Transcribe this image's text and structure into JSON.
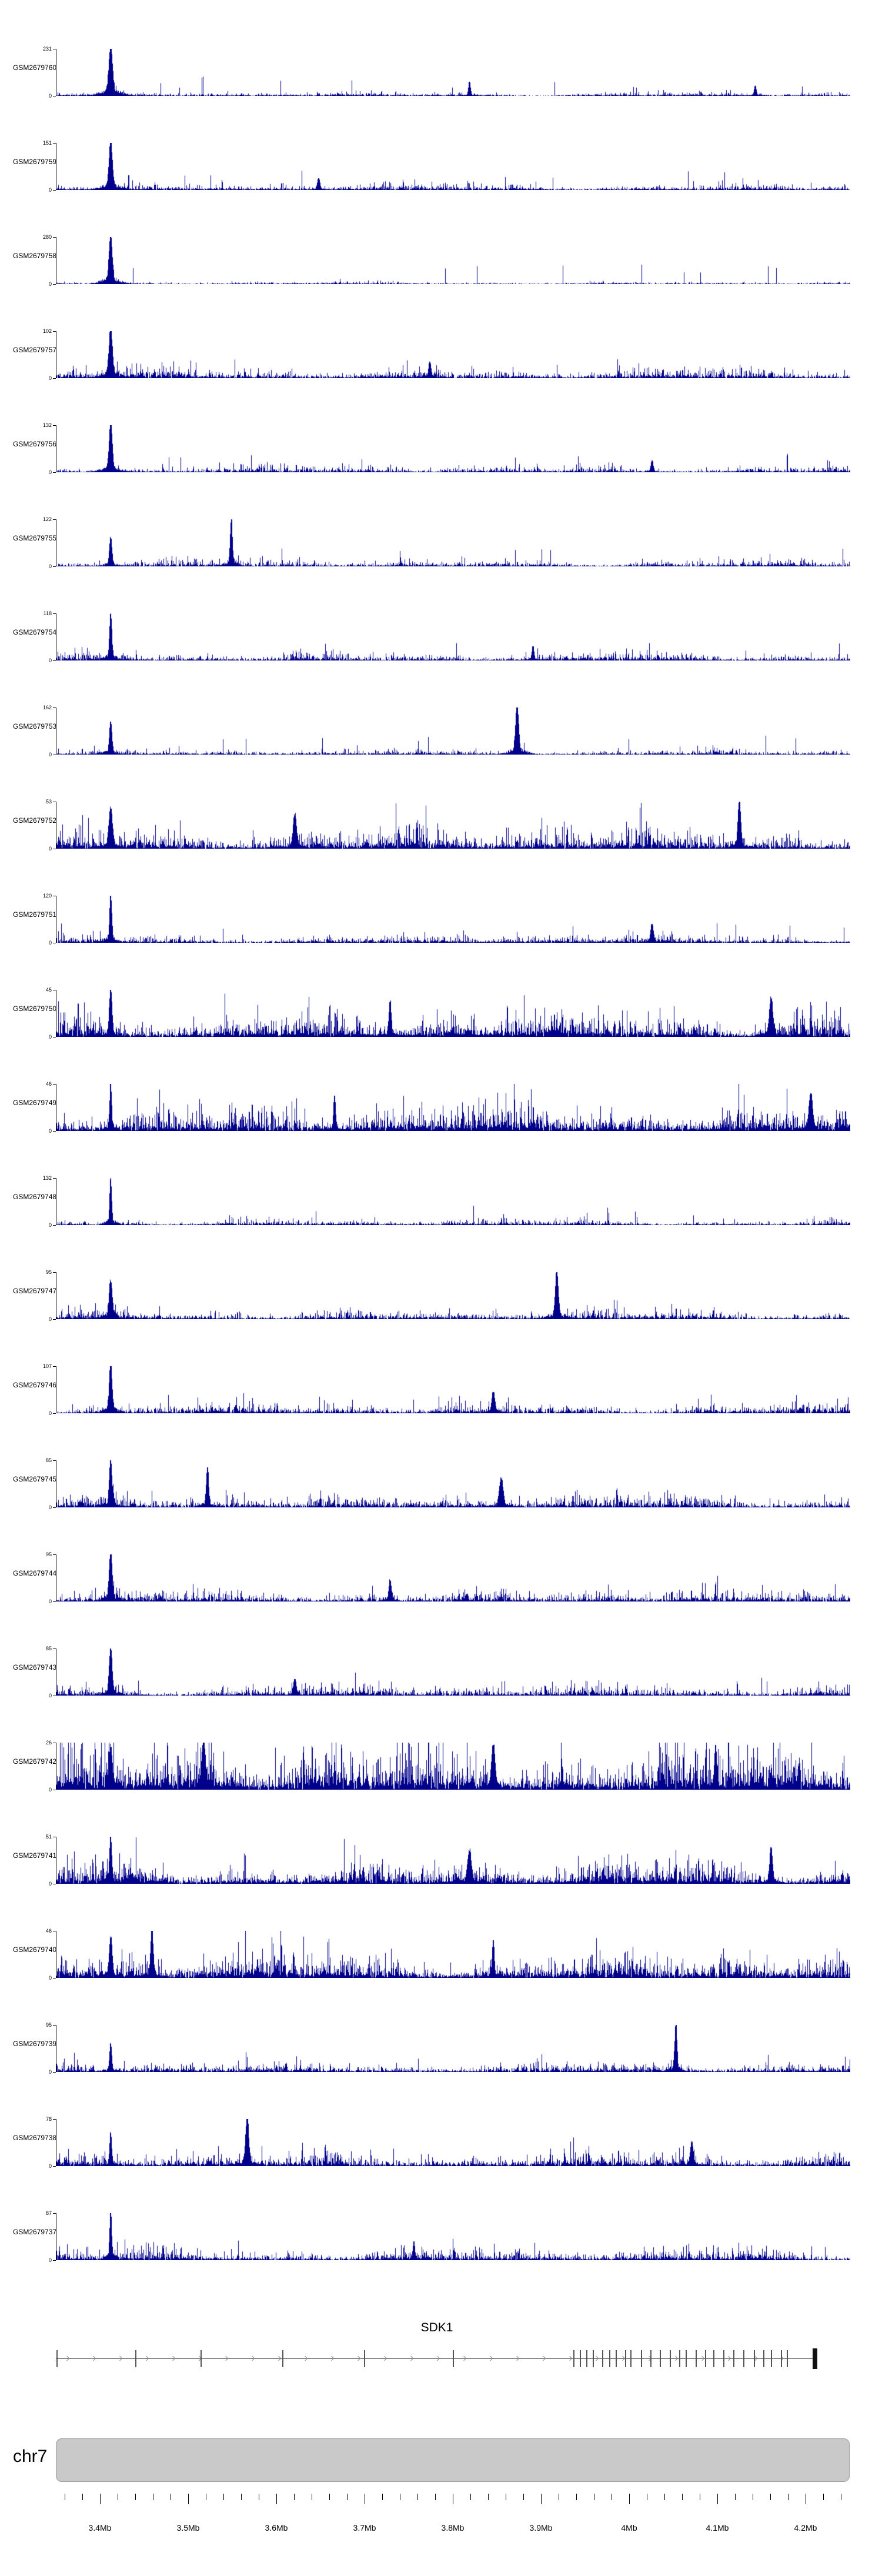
{
  "chart_data": {
    "type": "genome-coverage-tracks",
    "region": {
      "chromosome": "chr7",
      "start_mb": 3.35,
      "end_mb": 4.25,
      "unit": "Mb"
    },
    "signal_color": "#00008B",
    "y_min_label": "0",
    "x_axis": {
      "tick_labels": [
        "3.4Mb",
        "3.5Mb",
        "3.6Mb",
        "3.7Mb",
        "3.8Mb",
        "3.9Mb",
        "4Mb",
        "4.1Mb",
        "4.2Mb"
      ],
      "tick_values_mb": [
        3.4,
        3.5,
        3.6,
        3.7,
        3.8,
        3.9,
        4.0,
        4.1,
        4.2
      ],
      "minor_tick_step_mb": 0.02,
      "minor_tick_start_mb": 3.36,
      "minor_tick_end_mb": 4.24
    },
    "tracks": [
      {
        "name": "GSM2679760",
        "ymax": 231,
        "noise": 6,
        "peaks": [
          [
            0.068,
            1.0
          ],
          [
            0.52,
            0.3
          ],
          [
            0.88,
            0.22
          ]
        ]
      },
      {
        "name": "GSM2679759",
        "ymax": 151,
        "noise": 7,
        "peaks": [
          [
            0.068,
            1.0
          ],
          [
            0.33,
            0.25
          ]
        ]
      },
      {
        "name": "GSM2679758",
        "ymax": 280,
        "noise": 5,
        "peaks": [
          [
            0.068,
            1.0
          ]
        ]
      },
      {
        "name": "GSM2679757",
        "ymax": 102,
        "noise": 8,
        "peaks": [
          [
            0.068,
            1.0
          ],
          [
            0.47,
            0.35
          ]
        ]
      },
      {
        "name": "GSM2679756",
        "ymax": 132,
        "noise": 7,
        "peaks": [
          [
            0.068,
            1.0
          ],
          [
            0.75,
            0.25
          ]
        ]
      },
      {
        "name": "GSM2679755",
        "ymax": 122,
        "noise": 6,
        "peaks": [
          [
            0.22,
            1.0
          ],
          [
            0.068,
            0.6
          ]
        ]
      },
      {
        "name": "GSM2679754",
        "ymax": 118,
        "noise": 7,
        "peaks": [
          [
            0.068,
            1.0
          ],
          [
            0.6,
            0.3
          ]
        ]
      },
      {
        "name": "GSM2679753",
        "ymax": 162,
        "noise": 6,
        "peaks": [
          [
            0.58,
            1.0
          ],
          [
            0.068,
            0.7
          ]
        ]
      },
      {
        "name": "GSM2679752",
        "ymax": 53,
        "noise": 9,
        "peaks": [
          [
            0.86,
            1.0
          ],
          [
            0.068,
            0.85
          ],
          [
            0.3,
            0.7
          ]
        ]
      },
      {
        "name": "GSM2679751",
        "ymax": 120,
        "noise": 7,
        "peaks": [
          [
            0.068,
            1.0
          ],
          [
            0.75,
            0.4
          ]
        ]
      },
      {
        "name": "GSM2679750",
        "ymax": 45,
        "noise": 9,
        "peaks": [
          [
            0.068,
            1.0
          ],
          [
            0.9,
            0.8
          ],
          [
            0.42,
            0.75
          ]
        ]
      },
      {
        "name": "GSM2679749",
        "ymax": 46,
        "noise": 10,
        "peaks": [
          [
            0.068,
            1.0
          ],
          [
            0.35,
            0.75
          ],
          [
            0.95,
            0.8
          ]
        ]
      },
      {
        "name": "GSM2679748",
        "ymax": 132,
        "noise": 6,
        "peaks": [
          [
            0.068,
            1.0
          ]
        ]
      },
      {
        "name": "GSM2679747",
        "ymax": 95,
        "noise": 7,
        "peaks": [
          [
            0.63,
            1.0
          ],
          [
            0.068,
            0.8
          ]
        ]
      },
      {
        "name": "GSM2679746",
        "ymax": 107,
        "noise": 8,
        "peaks": [
          [
            0.068,
            1.0
          ],
          [
            0.55,
            0.45
          ]
        ]
      },
      {
        "name": "GSM2679745",
        "ymax": 85,
        "noise": 8,
        "peaks": [
          [
            0.068,
            1.0
          ],
          [
            0.19,
            0.85
          ],
          [
            0.56,
            0.6
          ]
        ]
      },
      {
        "name": "GSM2679744",
        "ymax": 95,
        "noise": 8,
        "peaks": [
          [
            0.068,
            1.0
          ],
          [
            0.42,
            0.45
          ]
        ]
      },
      {
        "name": "GSM2679743",
        "ymax": 85,
        "noise": 7,
        "peaks": [
          [
            0.068,
            1.0
          ],
          [
            0.3,
            0.35
          ]
        ]
      },
      {
        "name": "GSM2679742",
        "ymax": 26,
        "noise": 9,
        "peaks": [
          [
            0.185,
            1.0
          ],
          [
            0.068,
            0.9
          ],
          [
            0.55,
            0.95
          ],
          [
            0.83,
            0.95
          ]
        ]
      },
      {
        "name": "GSM2679741",
        "ymax": 51,
        "noise": 9,
        "peaks": [
          [
            0.068,
            1.0
          ],
          [
            0.52,
            0.7
          ],
          [
            0.9,
            0.75
          ]
        ]
      },
      {
        "name": "GSM2679740",
        "ymax": 46,
        "noise": 9,
        "peaks": [
          [
            0.12,
            1.0
          ],
          [
            0.068,
            0.85
          ],
          [
            0.55,
            0.8
          ]
        ]
      },
      {
        "name": "GSM2679739",
        "ymax": 95,
        "noise": 7,
        "peaks": [
          [
            0.78,
            1.0
          ],
          [
            0.068,
            0.6
          ]
        ]
      },
      {
        "name": "GSM2679738",
        "ymax": 78,
        "noise": 8,
        "peaks": [
          [
            0.24,
            1.0
          ],
          [
            0.068,
            0.7
          ],
          [
            0.8,
            0.5
          ]
        ]
      },
      {
        "name": "GSM2679737",
        "ymax": 87,
        "noise": 8,
        "peaks": [
          [
            0.068,
            1.0
          ],
          [
            0.45,
            0.4
          ]
        ]
      }
    ],
    "gene_track": {
      "gene": "SDK1",
      "strand": "+",
      "label_frac": 0.48,
      "exon_fracs": [
        0.001,
        0.1,
        0.182,
        0.285,
        0.388,
        0.5,
        0.652,
        0.66,
        0.668,
        0.676,
        0.688,
        0.697,
        0.705,
        0.717,
        0.724,
        0.737,
        0.749,
        0.761,
        0.773,
        0.785,
        0.793,
        0.806,
        0.818,
        0.828,
        0.841,
        0.853,
        0.866,
        0.879,
        0.891,
        0.901,
        0.913,
        0.921
      ],
      "end_block_frac": 0.953
    },
    "ideogram": {
      "chromosome": "chr7",
      "fill": "#c9c9c9"
    }
  }
}
